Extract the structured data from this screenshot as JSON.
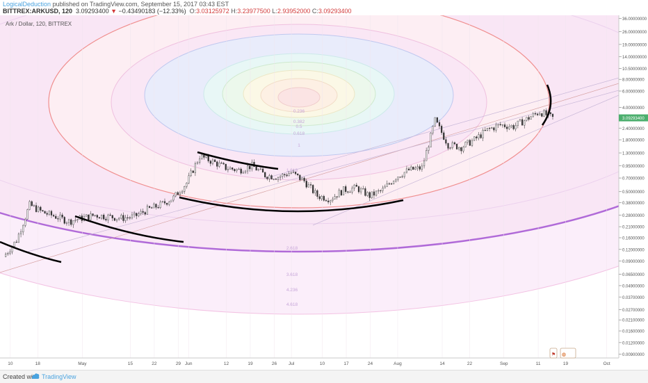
{
  "header": {
    "author": "LogicalDeduction",
    "published": "published on TradingView.com, September 15, 2017 03:43 EST",
    "symbol": "BITTREX:ARKUSD, 120",
    "last": "3.09293400",
    "change": "−0.43490183 (−12.33%)",
    "open_label": "O:",
    "open": "3.03125972",
    "high_label": "H:",
    "high": "3.23977500",
    "low_label": "L:",
    "low": "2.93952000",
    "close_label": "C:",
    "close": "3.09293400"
  },
  "legend_title": "Ark / Dollar, 120, BITTREX",
  "footer": {
    "created_with": "Created with",
    "brand": "TradingView"
  },
  "colors": {
    "outer_ellipse": "#f08f8f",
    "purple_ellipse": "#b06ad8",
    "blue_ellipse": "#bfc8ef",
    "candle_up": "#555555",
    "price_badge": "#4caf6e",
    "fib_label": "#c7a6d9"
  },
  "chart_data": {
    "type": "line",
    "title": "Ark / Dollar, 120, BITTREX",
    "yscale": "log",
    "ylim": [
      0.0082,
      39.0
    ],
    "y_ticks": [
      "36.00000000",
      "26.00000000",
      "19.00000000",
      "14.00000000",
      "10.50000000",
      "8.00000000",
      "6.00000000",
      "4.00000000",
      "3.09293400",
      "2.40000000",
      "1.80000000",
      "1.30000000",
      "0.95000000",
      "0.70000000",
      "0.50000000",
      "0.38000000",
      "0.28000000",
      "0.21000000",
      "0.16000000",
      "0.12000000",
      "0.09000000",
      "0.06500000",
      "0.04900000",
      "0.03700000",
      "0.02700000",
      "0.02100000",
      "0.01600000",
      "0.01200000",
      "0.00900000"
    ],
    "x_ticks": [
      "10",
      "18",
      "May",
      "15",
      "22",
      "29",
      "Jun",
      "12",
      "19",
      "26",
      "Jul",
      "10",
      "17",
      "24",
      "Aug",
      "14",
      "22",
      "Sep",
      "11",
      "19",
      "Oct"
    ],
    "last_price": "3.09293400",
    "fib_levels": [
      "0.236",
      "0.382",
      "0.5",
      "0.618",
      "1",
      "1.618",
      "2.618",
      "3.618",
      "4.236",
      "4.618"
    ],
    "series": [
      {
        "x": [
          "Apr 10",
          "Apr 14",
          "Apr 18",
          "Apr 22",
          "Apr 26",
          "May 1",
          "May 5",
          "May 9",
          "May 13",
          "May 17",
          "May 21",
          "May 25",
          "May 29",
          "Jun 1",
          "Jun 3",
          "Jun 5",
          "Jun 9",
          "Jun 13",
          "Jun 17",
          "Jun 21",
          "Jun 25",
          "Jun 29",
          "Jul 3",
          "Jul 7",
          "Jul 11",
          "Jul 15",
          "Jul 19",
          "Jul 23",
          "Jul 27",
          "Jul 31",
          "Aug 4",
          "Aug 8",
          "Aug 12",
          "Aug 14",
          "Aug 18",
          "Aug 22",
          "Aug 26",
          "Aug 30",
          "Sep 3",
          "Sep 7",
          "Sep 11",
          "Sep 14",
          "Sep 15"
        ],
        "values": [
          0.1,
          0.15,
          0.36,
          0.3,
          0.27,
          0.24,
          0.26,
          0.28,
          0.27,
          0.26,
          0.27,
          0.32,
          0.36,
          0.43,
          0.62,
          1.2,
          1.05,
          0.9,
          0.85,
          0.95,
          0.75,
          0.72,
          0.8,
          0.65,
          0.45,
          0.42,
          0.52,
          0.55,
          0.45,
          0.52,
          0.72,
          0.85,
          0.9,
          2.9,
          1.6,
          1.5,
          1.8,
          2.3,
          2.6,
          2.5,
          3.0,
          3.6,
          3.09
        ]
      }
    ]
  }
}
